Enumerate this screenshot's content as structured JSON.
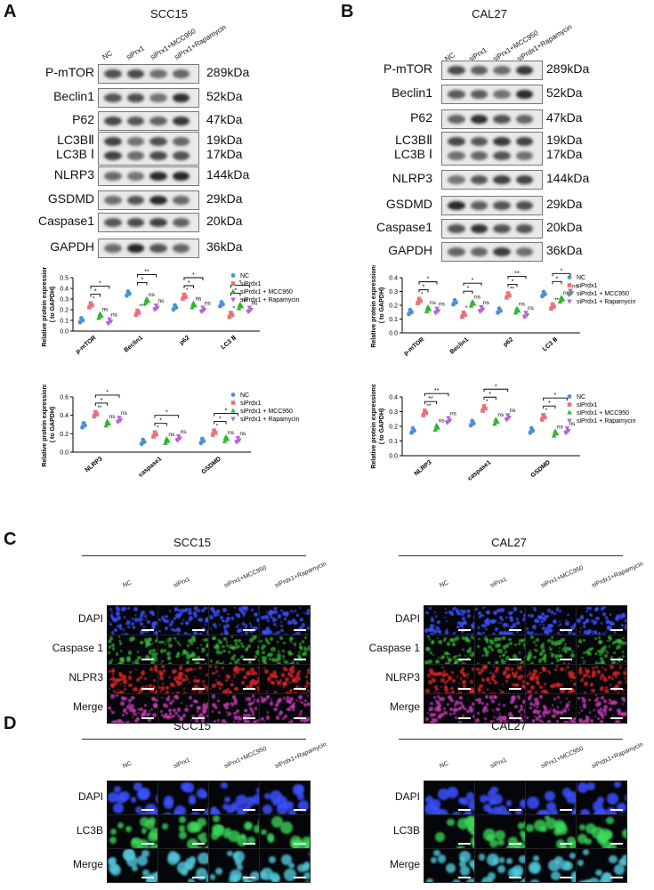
{
  "panels": [
    {
      "letter": "A",
      "title": "SCC15"
    },
    {
      "letter": "B",
      "title": "CAL27"
    },
    {
      "letter": "C"
    },
    {
      "letter": "D"
    }
  ],
  "blot_A": {
    "lanes": [
      "NC",
      "siPrx1",
      "siPrx1+MCC950",
      "siPrx1+Rapamycin"
    ],
    "rows": [
      {
        "label": "P-mTOR",
        "kda": "289kDa"
      },
      {
        "label": "Beclin1",
        "kda": "52kDa"
      },
      {
        "label": "P62",
        "kda": "47kDa"
      },
      {
        "label": "LC3BⅡ",
        "kda": "19kDa"
      },
      {
        "label": "LC3B Ⅰ",
        "kda": "17kDa"
      },
      {
        "label": "NLRP3",
        "kda": "144kDa"
      },
      {
        "label": "GSDMD",
        "kda": "29kDa"
      },
      {
        "label": "Caspase1",
        "kda": "20kDa"
      },
      {
        "label": "GAPDH",
        "kda": "36kDa"
      }
    ]
  },
  "blot_B": {
    "lanes": [
      "NC",
      "siPrx1",
      "siPrx1+MCC950",
      "siPrdx1+Rapamycin"
    ],
    "rows": [
      {
        "label": "P-mTOR",
        "kda": "289kDa"
      },
      {
        "label": "Beclin1",
        "kda": "52kDa"
      },
      {
        "label": "P62",
        "kda": "47kDa"
      },
      {
        "label": "LC3BⅡ",
        "kda": "19kDa"
      },
      {
        "label": "LC3B Ⅰ",
        "kda": "17kDa"
      },
      {
        "label": "NLRP3",
        "kda": "144kDa"
      },
      {
        "label": "GSDMD",
        "kda": "29kDa"
      },
      {
        "label": "Caspase1",
        "kda": "20kDa"
      },
      {
        "label": "GAPDH",
        "kda": "36kDa"
      }
    ]
  },
  "legend_A": [
    "NC",
    "siPrdx1",
    "siPrdx1 + MCC950",
    "siPrdx1 + Rapamycin"
  ],
  "legend_B": [
    "NC",
    "siPrdx1",
    "siPrdx1 + MCC950",
    "siPrdx1 + Rapamycin"
  ],
  "colors": {
    "nc": "#4a90d9",
    "si": "#e8737a",
    "mcc": "#2db52d",
    "rapa": "#b163d9"
  },
  "chart_data": [
    {
      "type": "scatter",
      "panel": "A-top",
      "ylabel": "Relative protein expressions\n( to GAPDH)",
      "categories": [
        "p-mTOR",
        "Beclin1",
        "p62",
        "LC3 Ⅱ"
      ],
      "ylim": [
        0,
        0.5
      ],
      "yticks": [
        "0.0",
        "0.1",
        "0.2",
        "0.3",
        "0.4",
        "0.5"
      ],
      "series": [
        {
          "name": "NC",
          "values": [
            0.1,
            0.35,
            0.22,
            0.25
          ]
        },
        {
          "name": "siPrdx1",
          "values": [
            0.24,
            0.17,
            0.32,
            0.15
          ]
        },
        {
          "name": "siPrdx1 + MCC950",
          "values": [
            0.14,
            0.28,
            0.24,
            0.23
          ]
        },
        {
          "name": "siPrdx1 + Rapamycin",
          "values": [
            0.09,
            0.22,
            0.2,
            0.2
          ]
        }
      ],
      "sig": [
        [
          "*",
          "ns",
          "ns"
        ],
        [
          "***",
          "ns",
          "ns"
        ],
        [
          "*",
          "ns",
          "ns"
        ],
        [
          "*",
          "ns",
          "ns"
        ]
      ],
      "brackets": [
        [
          "*",
          "*"
        ],
        [
          "*",
          "**"
        ],
        [
          "*",
          "*"
        ],
        [
          "*",
          "*"
        ]
      ]
    },
    {
      "type": "scatter",
      "panel": "A-bottom",
      "ylabel": "Relative protein expressions\n( to GAPDH)",
      "categories": [
        "NLRP3",
        "caspase1",
        "GSDMD"
      ],
      "ylim": [
        0,
        0.6
      ],
      "yticks": [
        "0.0",
        "0.2",
        "0.4",
        "0.6"
      ],
      "series": [
        {
          "name": "NC",
          "values": [
            0.29,
            0.11,
            0.12
          ]
        },
        {
          "name": "siPrdx1",
          "values": [
            0.41,
            0.19,
            0.21
          ]
        },
        {
          "name": "siPrdx1 + MCC950",
          "values": [
            0.31,
            0.12,
            0.14
          ]
        },
        {
          "name": "siPrdx1 + Rapamycin",
          "values": [
            0.35,
            0.15,
            0.13
          ]
        }
      ],
      "sig": [
        [
          "**",
          "ns",
          "ns"
        ],
        [
          "*",
          "ns",
          "ns"
        ],
        [
          "*",
          "ns",
          "ns"
        ]
      ],
      "brackets": [
        [
          "*",
          "*"
        ],
        [
          "*",
          "*"
        ],
        [
          "*",
          "*"
        ]
      ]
    },
    {
      "type": "scatter",
      "panel": "B-top",
      "ylabel": "Relative protein expressions\n( to GAPDH)",
      "categories": [
        "p-mTOR",
        "Beclin1",
        "p62",
        "LC3 Ⅱ"
      ],
      "ylim": [
        0,
        0.4
      ],
      "yticks": [
        "0.0",
        "0.1",
        "0.2",
        "0.3",
        "0.4"
      ],
      "series": [
        {
          "name": "NC",
          "values": [
            0.15,
            0.22,
            0.16,
            0.28
          ]
        },
        {
          "name": "siPrdx1",
          "values": [
            0.23,
            0.13,
            0.27,
            0.19
          ]
        },
        {
          "name": "siPrdx1 + MCC950",
          "values": [
            0.17,
            0.21,
            0.16,
            0.24
          ]
        },
        {
          "name": "siPrdx1 + Rapamycin",
          "values": [
            0.16,
            0.17,
            0.13,
            0.29
          ]
        }
      ],
      "sig": [
        [
          "*",
          "ns",
          "ns"
        ],
        [
          "*",
          "ns",
          "ns"
        ],
        [
          "**",
          "ns",
          "ns"
        ],
        [
          "**",
          "ns",
          "ns"
        ]
      ],
      "brackets": [
        [
          "*",
          "*"
        ],
        [
          "*",
          "*"
        ],
        [
          "*",
          "**"
        ],
        [
          "*",
          "*"
        ]
      ]
    },
    {
      "type": "scatter",
      "panel": "B-bottom",
      "ylabel": "Relative protein expressions\n( to GAPDH)",
      "categories": [
        "NLRP3",
        "caspase1",
        "GSDMD"
      ],
      "ylim": [
        0,
        0.4
      ],
      "yticks": [
        "0.0",
        "0.1",
        "0.2",
        "0.3",
        "0.4"
      ],
      "series": [
        {
          "name": "NC",
          "values": [
            0.17,
            0.22,
            0.17
          ]
        },
        {
          "name": "siPrdx1",
          "values": [
            0.29,
            0.32,
            0.26
          ]
        },
        {
          "name": "siPrdx1 + MCC950",
          "values": [
            0.19,
            0.23,
            0.15
          ]
        },
        {
          "name": "siPrdx1 + Rapamycin",
          "values": [
            0.24,
            0.26,
            0.17
          ]
        }
      ],
      "sig": [
        [
          "**",
          "ns",
          "ns"
        ],
        [
          "*",
          "ns",
          "ns"
        ],
        [
          "*",
          "ns",
          "ns"
        ]
      ],
      "brackets": [
        [
          "**",
          "**"
        ],
        [
          "*",
          "*"
        ],
        [
          "*",
          "*"
        ]
      ]
    }
  ],
  "if_C": {
    "left": {
      "title": "SCC15",
      "cols": [
        "NC",
        "siPrx1",
        "siPrx1+MCC950",
        "siPrdx1+Rapamycin"
      ]
    },
    "right": {
      "title": "CAL27",
      "cols": [
        "NC",
        "siPrx1",
        "siPrx1+MCC950",
        "siPrdx1+Rapamycin"
      ]
    },
    "rows": [
      "DAPI",
      "Caspase 1",
      "NLPR3",
      "Merge"
    ],
    "rows_right": [
      "DAPI",
      "Caspase 1",
      "NLRP3",
      "Merge"
    ]
  },
  "if_D": {
    "left": {
      "title": "SCC15",
      "cols": [
        "NC",
        "siPrx1",
        "siPrx1+MCC950",
        "siPrdx1+Rapamycin"
      ]
    },
    "right": {
      "title": "CAL27",
      "cols": [
        "NC",
        "siPrx1",
        "siPrx1+MCC950",
        "siPrdx1+Rapamycin"
      ]
    },
    "rows": [
      "DAPI",
      "LC3B",
      "Merge"
    ]
  }
}
